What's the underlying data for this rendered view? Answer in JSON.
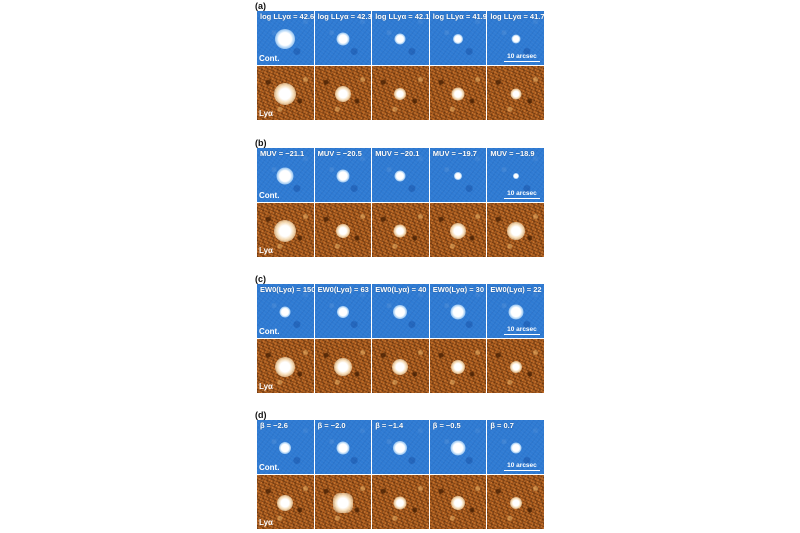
{
  "figure": {
    "panels": [
      {
        "label": "(a)",
        "tile_labels": [
          "log LLyα = 42.6",
          "log LLyα = 42.3",
          "log LLyα = 42.1",
          "log LLyα = 41.9",
          "log LLyα = 41.7"
        ],
        "cont_label": "Cont.",
        "lya_label": "Lyα",
        "scalebar": "10 arcsec"
      },
      {
        "label": "(b)",
        "tile_labels": [
          "MUV = −21.1",
          "MUV = −20.5",
          "MUV = −20.1",
          "MUV = −19.7",
          "MUV = −18.9"
        ],
        "cont_label": "Cont.",
        "lya_label": "Lyα",
        "scalebar": "10 arcsec"
      },
      {
        "label": "(c)",
        "tile_labels": [
          "EW0(Lyα) = 150",
          "EW0(Lyα) = 63",
          "EW0(Lyα) = 40",
          "EW0(Lyα) = 30",
          "EW0(Lyα) = 22"
        ],
        "cont_label": "Cont.",
        "lya_label": "Lyα",
        "scalebar": "10 arcsec"
      },
      {
        "label": "(d)",
        "tile_labels": [
          "β = −2.6",
          "β = −2.0",
          "β = −1.4",
          "β = −0.5",
          "β = 0.7"
        ],
        "cont_label": "Cont.",
        "lya_label": "Lyα",
        "scalebar": "10 arcsec"
      }
    ]
  }
}
